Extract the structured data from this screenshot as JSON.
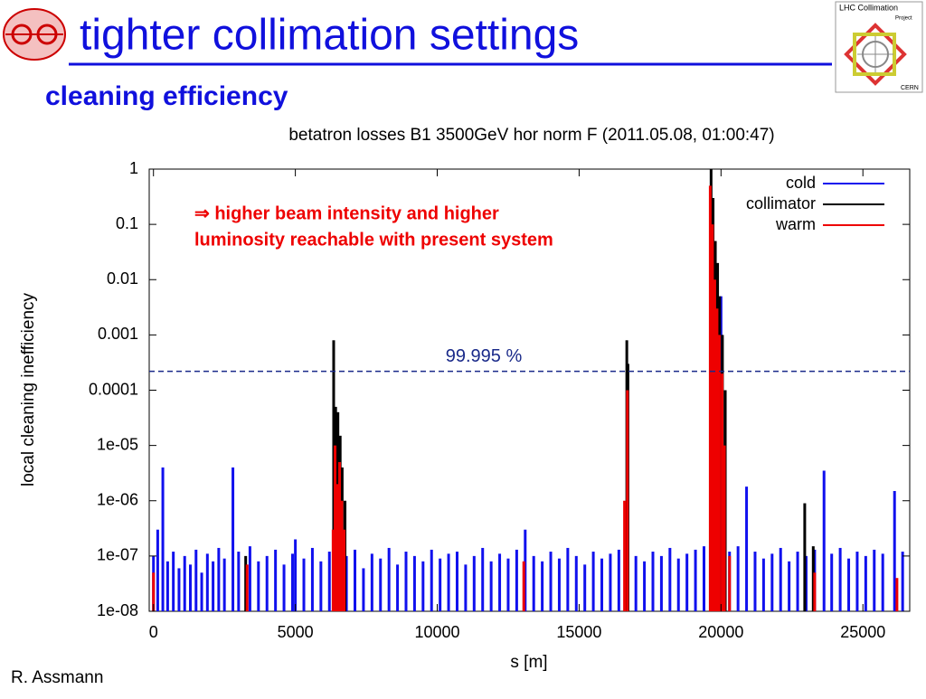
{
  "slide": {
    "title": "tighter collimation settings",
    "subtitle": "cleaning efficiency",
    "author": "R. Assmann",
    "logo": {
      "line1": "LHC Collimation",
      "line2": "Project",
      "line3": "CERN"
    }
  },
  "chart_data": {
    "type": "bar",
    "title": "betatron losses B1 3500GeV hor norm F (2011.05.08, 01:00:47)",
    "x_label": "s [m]",
    "y_label": "local cleaning inefficiency",
    "log_y": true,
    "legend": "top-right",
    "annotation": [
      "⇒ higher beam intensity and higher",
      "luminosity reachable with present system"
    ],
    "reference_line": {
      "value": 0.00022,
      "label": "99.995 %",
      "color": "#1a2a8a"
    },
    "xlim": [
      -150,
      26650
    ],
    "xticks": [
      0,
      5000,
      10000,
      15000,
      20000,
      25000
    ],
    "ylim": [
      1e-08,
      1
    ],
    "yticks": [
      1,
      0.1,
      0.01,
      0.001,
      0.0001,
      {
        "value": 1e-05,
        "label": "1e-05"
      },
      {
        "value": 1e-06,
        "label": "1e-06"
      },
      {
        "value": 1e-07,
        "label": "1e-07"
      },
      {
        "value": 1e-08,
        "label": "1e-08"
      }
    ],
    "series": [
      {
        "name": "cold",
        "color": "#1010ee",
        "x": [
          0,
          150,
          330,
          500,
          700,
          900,
          1100,
          1300,
          1500,
          1700,
          1900,
          2100,
          2300,
          2500,
          2800,
          3000,
          3400,
          3700,
          4000,
          4300,
          4600,
          4900,
          5000,
          5300,
          5600,
          5900,
          6200,
          6800,
          7100,
          7400,
          7700,
          8000,
          8300,
          8600,
          8900,
          9200,
          9500,
          9800,
          10100,
          10400,
          10700,
          11000,
          11300,
          11600,
          11900,
          12200,
          12500,
          12800,
          13100,
          13400,
          13700,
          14000,
          14300,
          14600,
          14900,
          15200,
          15500,
          15800,
          16100,
          16400,
          16700,
          17000,
          17300,
          17600,
          17900,
          18200,
          18500,
          18800,
          19100,
          19400,
          19700,
          20000,
          20300,
          20600,
          20900,
          21200,
          21500,
          21800,
          22100,
          22400,
          22700,
          23000,
          23300,
          23630,
          23900,
          24200,
          24500,
          24800,
          25100,
          25400,
          25700,
          26115,
          26400
        ],
        "values": [
          1e-07,
          3e-07,
          4e-06,
          8e-08,
          1.2e-07,
          6e-08,
          1e-07,
          7e-08,
          1.3e-07,
          5e-08,
          1.1e-07,
          8e-08,
          1.4e-07,
          9e-08,
          4e-06,
          1.2e-07,
          1.5e-07,
          8e-08,
          1e-07,
          1.3e-07,
          7e-08,
          1.1e-07,
          2e-07,
          9e-08,
          1.4e-07,
          8e-08,
          1.2e-07,
          1e-07,
          1.3e-07,
          6e-08,
          1.1e-07,
          9e-08,
          1.4e-07,
          7e-08,
          1.2e-07,
          1e-07,
          8e-08,
          1.3e-07,
          9e-08,
          1.1e-07,
          1.2e-07,
          7e-08,
          1e-07,
          1.4e-07,
          8e-08,
          1.1e-07,
          9e-08,
          1.3e-07,
          3e-07,
          1e-07,
          8e-08,
          1.2e-07,
          9e-08,
          1.4e-07,
          1e-07,
          7e-08,
          1.2e-07,
          9e-08,
          1.1e-07,
          1.3e-07,
          1e-05,
          1e-07,
          8e-08,
          1.2e-07,
          1e-07,
          1.4e-07,
          9e-08,
          1.1e-07,
          1.3e-07,
          1.5e-07,
          0.02,
          0.005,
          1.2e-07,
          1.5e-07,
          1.8e-06,
          1.2e-07,
          9e-08,
          1.1e-07,
          1.4e-07,
          8e-08,
          1.2e-07,
          1e-07,
          1.3e-07,
          3.5e-06,
          1.1e-07,
          1.4e-07,
          9e-08,
          1.2e-07,
          1e-07,
          1.3e-07,
          1.1e-07,
          1.5e-06,
          1.2e-07
        ]
      },
      {
        "name": "collimator",
        "color": "#000000",
        "x": [
          3250,
          6350,
          6420,
          6500,
          6580,
          6650,
          6750,
          16680,
          16720,
          19650,
          19720,
          19800,
          19880,
          19950,
          20050,
          20150,
          22950,
          23250
        ],
        "values": [
          1e-07,
          0.0008,
          5e-05,
          4e-05,
          1.5e-05,
          4e-06,
          1e-06,
          0.0008,
          0.0003,
          1,
          0.3,
          0.05,
          0.02,
          0.005,
          0.001,
          0.0001,
          9e-07,
          1.5e-07
        ]
      },
      {
        "name": "warm",
        "color": "#ee0000",
        "x": [
          0,
          3300,
          6330,
          6400,
          6480,
          6560,
          6640,
          6720,
          13050,
          16600,
          16700,
          19620,
          19700,
          19780,
          19860,
          19940,
          20040,
          20120,
          20300,
          23300,
          26200
        ],
        "values": [
          5e-08,
          7e-08,
          3e-07,
          1e-05,
          2e-06,
          5e-06,
          1e-06,
          3e-07,
          8e-08,
          1e-06,
          0.0001,
          0.5,
          0.1,
          0.01,
          0.003,
          0.001,
          0.0002,
          1e-05,
          1e-07,
          5e-08,
          4e-08
        ]
      }
    ]
  }
}
